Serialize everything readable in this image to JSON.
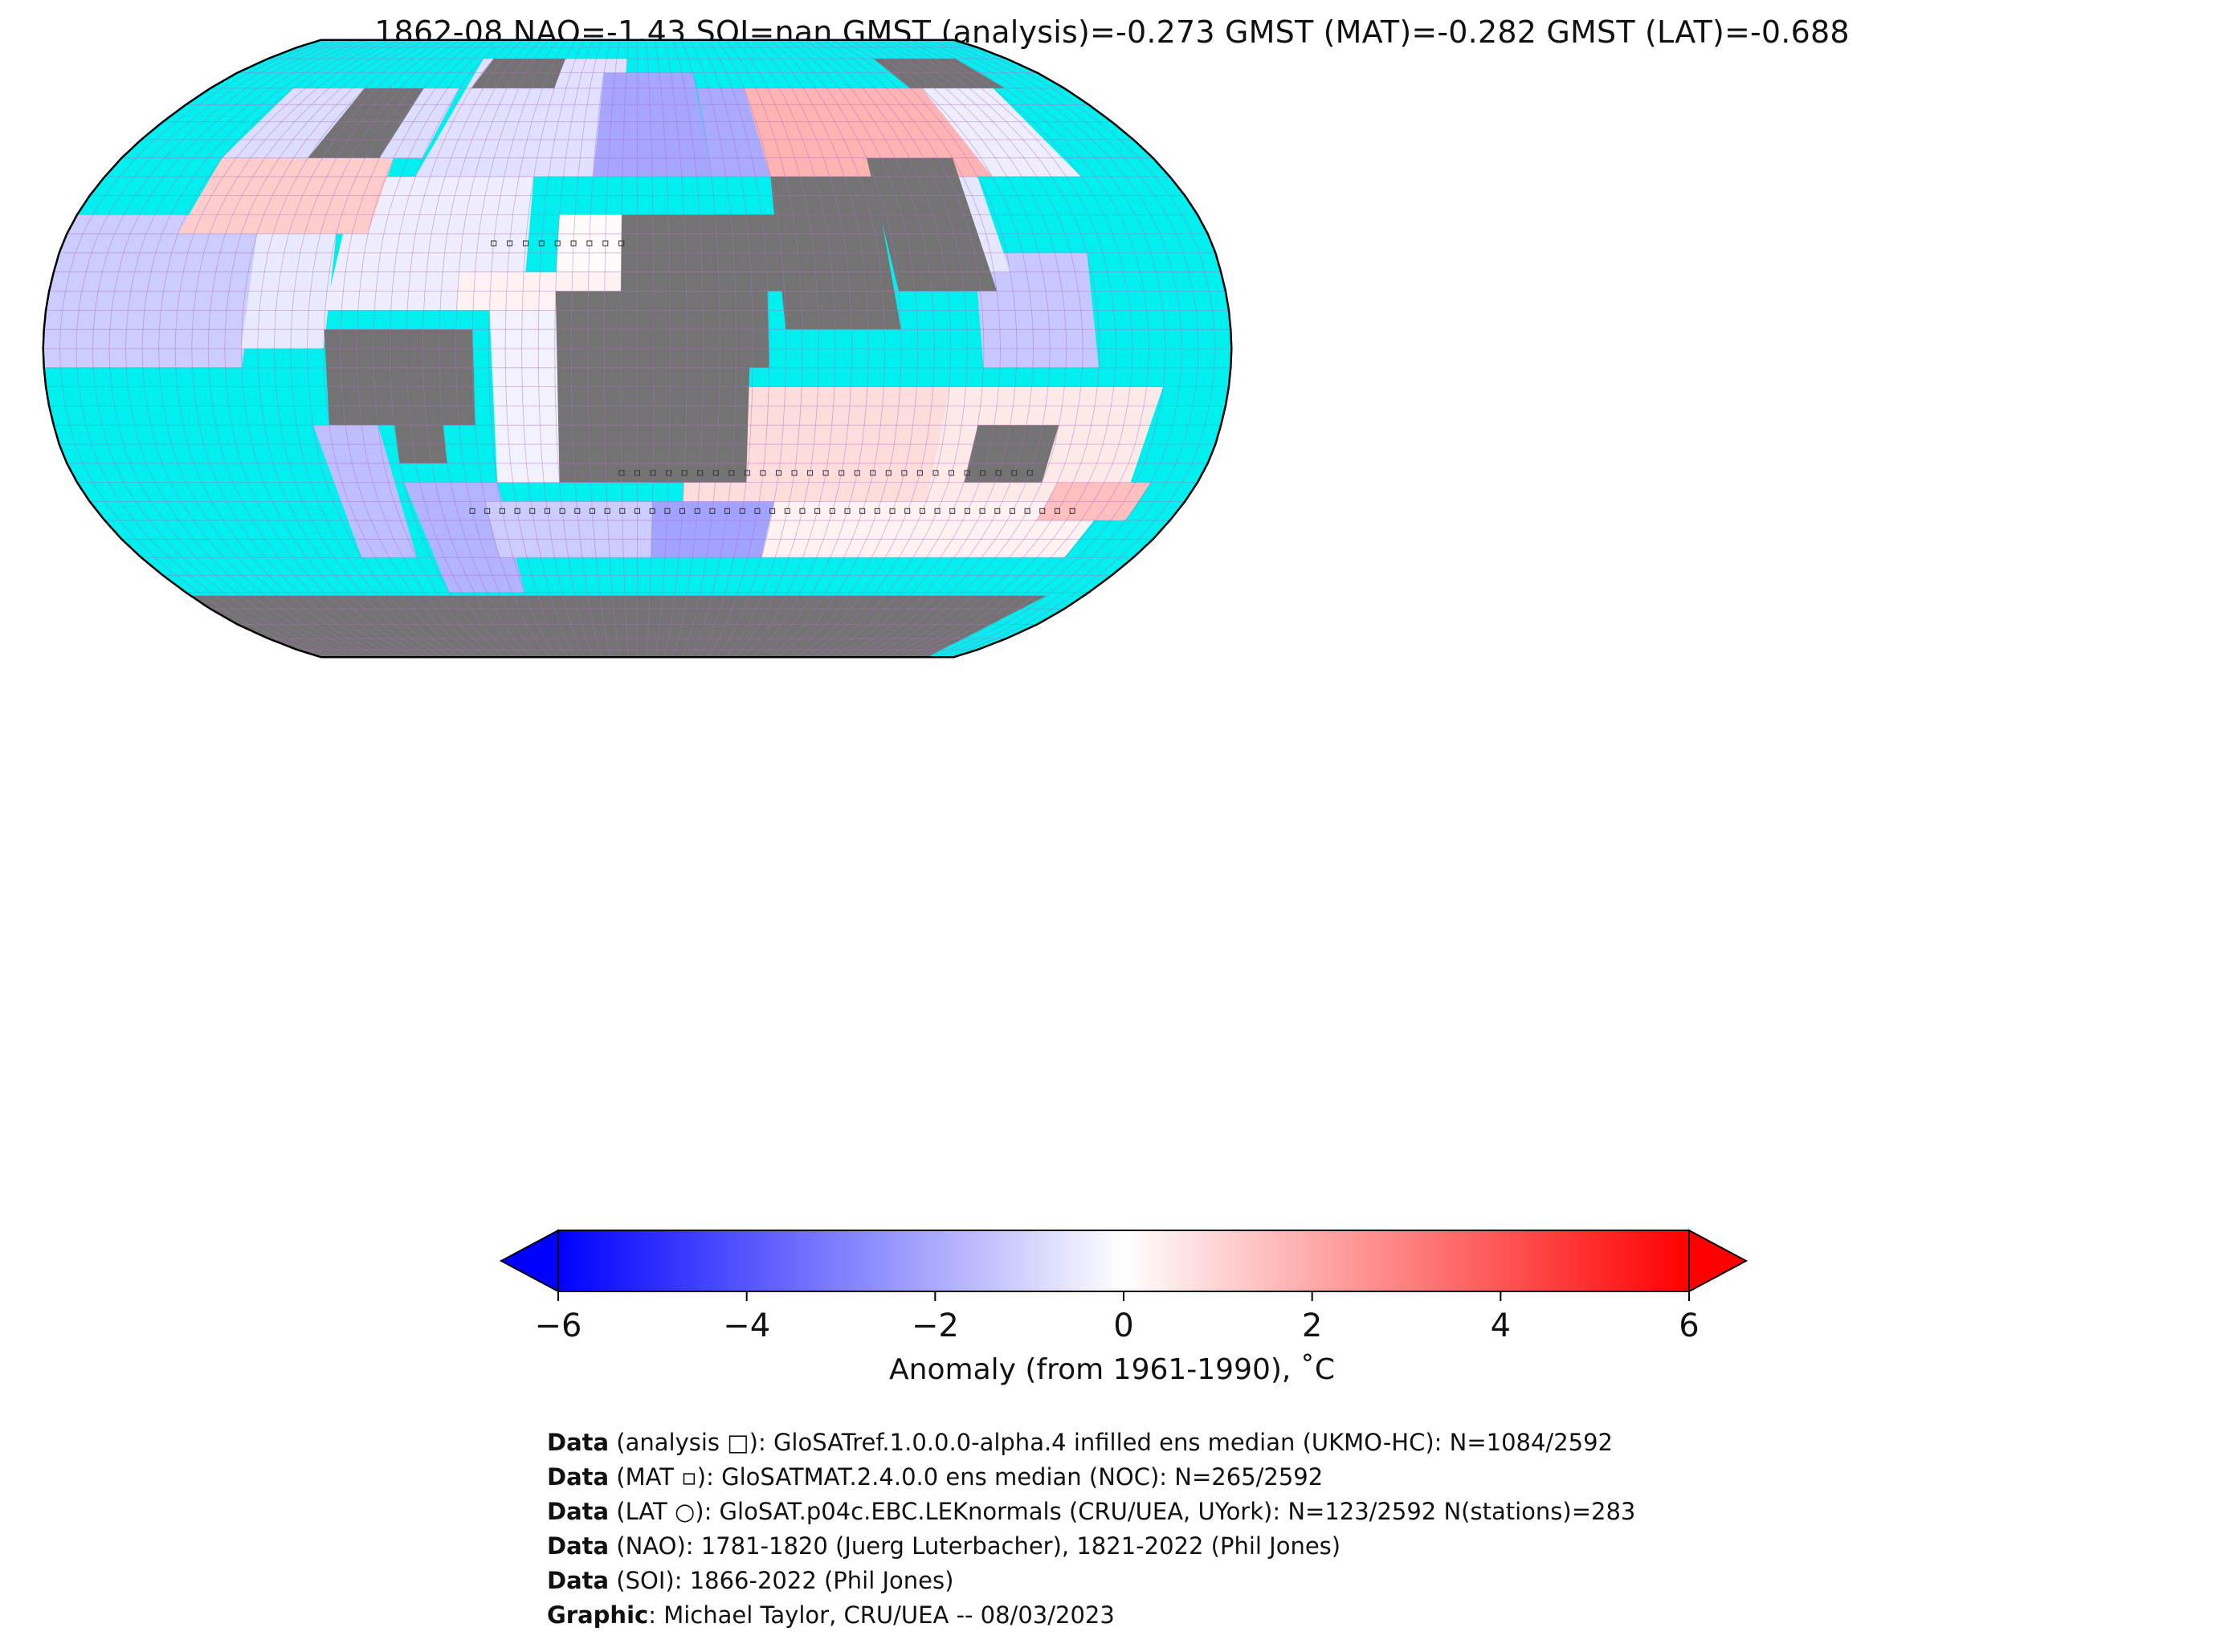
{
  "title": "1862-08 NAO=-1.43 SOI=nan GMST (analysis)=-0.273 GMST (MAT)=-0.282 GMST (LAT)=-0.688",
  "colorbar": {
    "label": "Anomaly (from 1961-1990), ˚C",
    "ticks": [
      {
        "value": -6,
        "label": "−6"
      },
      {
        "value": -4,
        "label": "−4"
      },
      {
        "value": -2,
        "label": "−2"
      },
      {
        "value": 0,
        "label": "0"
      },
      {
        "value": 2,
        "label": "2"
      },
      {
        "value": 4,
        "label": "4"
      },
      {
        "value": 6,
        "label": "6"
      }
    ],
    "range": [
      -6,
      6
    ],
    "colors": {
      "min": "#0000ff",
      "mid": "#ffffff",
      "max": "#ff0000"
    }
  },
  "map": {
    "projection": "robinson",
    "ocean_no_data_color": "#00f0f0",
    "land_no_data_color": "#737373",
    "grid_line_color": "#b070c0",
    "coastline_color": "#000000"
  },
  "credits": [
    {
      "bold": "Data",
      "text": " (analysis □): GloSATref.1.0.0.0-alpha.4 infilled ens median (UKMO-HC): N=1084/2592"
    },
    {
      "bold": "Data",
      "text": " (MAT ▫): GloSATMAT.2.4.0.0 ens median (NOC): N=265/2592"
    },
    {
      "bold": "Data",
      "text": " (LAT ○): GloSAT.p04c.EBC.LEKnormals (CRU/UEA, UYork): N=123/2592 N(stations)=283"
    },
    {
      "bold": "Data",
      "text": " (NAO): 1781-1820 (Juerg Luterbacher), 1821-2022 (Phil Jones)"
    },
    {
      "bold": "Data",
      "text": " (SOI): 1866-2022 (Phil Jones)"
    },
    {
      "bold": "Graphic",
      "text": ": Michael Taylor, CRU/UEA -- 08/03/2023"
    }
  ]
}
